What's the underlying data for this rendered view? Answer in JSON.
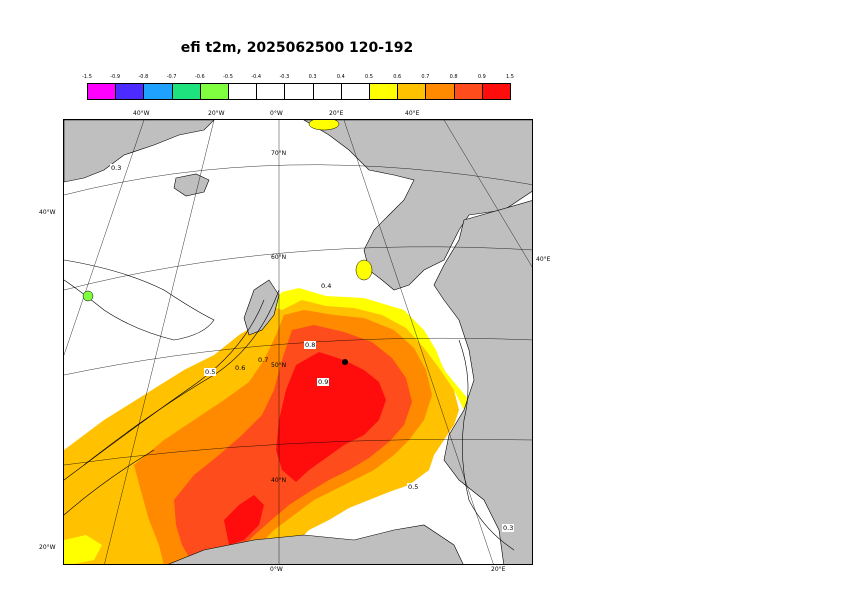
{
  "title": "efi t2m, 2025062500 120-192",
  "colorbar": {
    "ticks": [
      "-1.5",
      "-0.9",
      "-0.8",
      "-0.7",
      "-0.6",
      "-0.5",
      "-0.4",
      "-0.3",
      "0.3",
      "0.4",
      "0.5",
      "0.6",
      "0.7",
      "0.8",
      "0.9",
      "1.5"
    ],
    "colors": [
      "#ff00ff",
      "#4b2bff",
      "#1fa2ff",
      "#1de27e",
      "#7fff3f",
      "#ffffff",
      "#ffffff",
      "#ffffff",
      "#ffffff",
      "#ffffff",
      "#ffff00",
      "#ffc100",
      "#ff8a00",
      "#ff4c1c",
      "#ff0d0d"
    ]
  },
  "map": {
    "lon_labels_top": [
      "40°W",
      "20°W",
      "0°W",
      "20°E",
      "40°E"
    ],
    "lon_labels_bottom": [
      "0°W",
      "20°E"
    ],
    "lat_labels": [
      "70°N",
      "60°N",
      "50°N",
      "40°N"
    ],
    "side_labels": [
      "40°W",
      "20°W",
      "40°E"
    ],
    "contour_labels": [
      "0.3",
      "0.4",
      "0.5",
      "0.6",
      "0.7",
      "0.8",
      "0.9",
      "0.5",
      "0.3"
    ]
  }
}
